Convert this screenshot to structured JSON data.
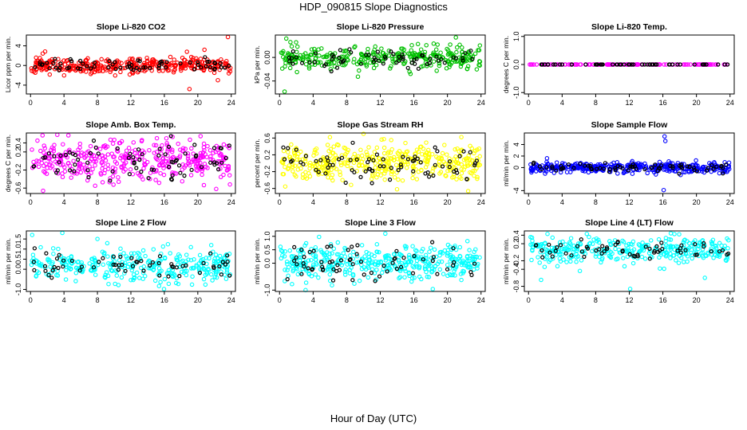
{
  "title": "HDP_090815  Slope Diagnostics",
  "xlabel": "Hour of Day (UTC)",
  "chart_data": [
    {
      "type": "scatter",
      "title": "Slope Li-820 CO2",
      "ylabel": "Licor ppm per min.",
      "color": "#ff0000",
      "xlim": [
        -0.5,
        24.5
      ],
      "ylim": [
        -5.8,
        6.2
      ],
      "yticks": [
        "-4",
        "0",
        "4"
      ],
      "ytick_values": [
        -4,
        0,
        4
      ],
      "xticks": [
        "0",
        "4",
        "8",
        "12",
        "16",
        "20",
        "24"
      ],
      "center": 0,
      "spread": 0.8,
      "black_spread": 0.6,
      "n_points": 360,
      "n_black": 70,
      "seed": 11,
      "outliers": [
        [
          19.0,
          -4.8
        ],
        [
          23.6,
          5.8
        ],
        [
          20.8,
          3.2
        ],
        [
          22.4,
          -3.0
        ],
        [
          18.7,
          2.8
        ]
      ]
    },
    {
      "type": "scatter",
      "title": "Slope Li-820 Pressure",
      "ylabel": "kPa per min.",
      "color": "#00c000",
      "xlim": [
        -0.5,
        24.5
      ],
      "ylim": [
        -0.062,
        0.038
      ],
      "yticks": [
        "-0.04",
        "0.00"
      ],
      "ytick_values": [
        -0.04,
        0.0
      ],
      "xticks": [
        "0",
        "4",
        "8",
        "12",
        "16",
        "20",
        "24"
      ],
      "center": 0,
      "spread": 0.009,
      "black_spread": 0.008,
      "n_points": 330,
      "n_black": 65,
      "seed": 23,
      "outliers": [
        [
          0.8,
          0.032
        ],
        [
          0.6,
          -0.058
        ],
        [
          21.0,
          0.034
        ],
        [
          15.6,
          -0.028
        ],
        [
          1.3,
          0.026
        ]
      ]
    },
    {
      "type": "scatter",
      "title": "Slope Li-820 Temp.",
      "ylabel": "degrees C per min.",
      "color": "#ff00ff",
      "xlim": [
        -0.5,
        24.5
      ],
      "ylim": [
        -1.05,
        1.05
      ],
      "yticks": [
        "-1.0",
        "0.0",
        "1.0"
      ],
      "ytick_values": [
        -1.0,
        0.0,
        1.0
      ],
      "xticks": [
        "0",
        "4",
        "8",
        "12",
        "16",
        "20",
        "24"
      ],
      "center": 0,
      "spread": 0.0,
      "black_spread": 0.0,
      "n_points": 130,
      "n_black": 50,
      "seed": 5,
      "outliers": []
    },
    {
      "type": "scatter",
      "title": "Slope Amb. Box Temp.",
      "ylabel": "degrees C per min.",
      "color": "#ff00ff",
      "xlim": [
        -0.5,
        24.5
      ],
      "ylim": [
        -0.72,
        0.62
      ],
      "yticks": [
        "-0.6",
        "-0.2",
        "0.2",
        "0.4"
      ],
      "ytick_values": [
        -0.6,
        -0.2,
        0.2,
        0.4
      ],
      "xticks": [
        "0",
        "4",
        "8",
        "12",
        "16",
        "20",
        "24"
      ],
      "center": 0,
      "spread": 0.22,
      "black_spread": 0.2,
      "n_points": 380,
      "n_black": 75,
      "seed": 37,
      "outliers": [
        [
          3.2,
          0.58
        ],
        [
          1.5,
          -0.66
        ],
        [
          22.2,
          -0.62
        ]
      ]
    },
    {
      "type": "scatter",
      "title": "Slope Gas Stream RH",
      "ylabel": "percent per min.",
      "color": "#ffff00",
      "xlim": [
        -0.5,
        24.5
      ],
      "ylim": [
        -0.72,
        0.72
      ],
      "yticks": [
        "-0.6",
        "-0.2",
        "0.2",
        "0.6"
      ],
      "ytick_values": [
        -0.6,
        -0.2,
        0.2,
        0.6
      ],
      "xticks": [
        "0",
        "4",
        "8",
        "12",
        "16",
        "20",
        "24"
      ],
      "center": 0,
      "spread": 0.22,
      "black_spread": 0.2,
      "n_points": 400,
      "n_black": 75,
      "seed": 41,
      "outliers": [
        [
          10.0,
          0.7
        ],
        [
          6.0,
          0.62
        ],
        [
          14.0,
          -0.62
        ]
      ]
    },
    {
      "type": "scatter",
      "title": "Slope Sample Flow",
      "ylabel": "ml/min per min.",
      "color": "#0000ff",
      "xlim": [
        -0.5,
        24.5
      ],
      "ylim": [
        -4.5,
        6.0
      ],
      "yticks": [
        "-4",
        "0",
        "2",
        "4"
      ],
      "ytick_values": [
        -4,
        0,
        2,
        4
      ],
      "xticks": [
        "0",
        "4",
        "8",
        "12",
        "16",
        "20",
        "24"
      ],
      "center": 0,
      "spread": 0.45,
      "black_spread": 0.4,
      "n_points": 380,
      "n_black": 70,
      "seed": 53,
      "outliers": [
        [
          16.2,
          5.4
        ],
        [
          16.3,
          4.6
        ],
        [
          16.1,
          -3.9
        ],
        [
          2.2,
          1.6
        ]
      ]
    },
    {
      "type": "scatter",
      "title": "Slope Line 2 Flow",
      "ylabel": "ml/min per min.",
      "color": "#00ffff",
      "xlim": [
        -0.5,
        24.5
      ],
      "ylim": [
        -1.1,
        1.9
      ],
      "yticks": [
        "-1.0",
        "0.0",
        "0.5",
        "1.0",
        "1.5"
      ],
      "ytick_values": [
        -1.0,
        0.0,
        0.5,
        1.0,
        1.5
      ],
      "xticks": [
        "0",
        "4",
        "8",
        "12",
        "16",
        "20",
        "24"
      ],
      "center": 0.2,
      "spread": 0.42,
      "black_spread": 0.32,
      "n_points": 330,
      "n_black": 60,
      "seed": 61,
      "outliers": [
        [
          3.8,
          1.8
        ],
        [
          0.2,
          1.7
        ],
        [
          8.0,
          1.5
        ]
      ]
    },
    {
      "type": "scatter",
      "title": "Slope Line 3 Flow",
      "ylabel": "ml/min per min.",
      "color": "#00ffff",
      "xlim": [
        -0.5,
        24.5
      ],
      "ylim": [
        -1.05,
        1.2
      ],
      "yticks": [
        "-1.0",
        "0.0",
        "0.5",
        "1.0"
      ],
      "ytick_values": [
        -1.0,
        0.0,
        0.5,
        1.0
      ],
      "xticks": [
        "0",
        "4",
        "8",
        "12",
        "16",
        "20",
        "24"
      ],
      "center": 0.05,
      "spread": 0.32,
      "black_spread": 0.28,
      "n_points": 400,
      "n_black": 65,
      "seed": 71,
      "outliers": [
        [
          12.6,
          1.1
        ],
        [
          3.1,
          -1.0
        ]
      ]
    },
    {
      "type": "scatter",
      "title": "Slope Line 4 (LT) Flow",
      "ylabel": "ml/min per min.",
      "color": "#00ffff",
      "xlim": [
        -0.5,
        24.5
      ],
      "ylim": [
        -0.92,
        0.5
      ],
      "yticks": [
        "-0.8",
        "-0.4",
        "-0.2",
        "0.2",
        "0.4"
      ],
      "ytick_values": [
        -0.8,
        -0.4,
        -0.2,
        0.2,
        0.4
      ],
      "xticks": [
        "0",
        "4",
        "8",
        "12",
        "16",
        "20",
        "24"
      ],
      "center": 0.06,
      "spread": 0.15,
      "black_spread": 0.12,
      "n_points": 330,
      "n_black": 60,
      "seed": 83,
      "outliers": [
        [
          12.1,
          -0.86
        ],
        [
          1.5,
          -0.65
        ],
        [
          21.0,
          -0.6
        ]
      ]
    }
  ]
}
